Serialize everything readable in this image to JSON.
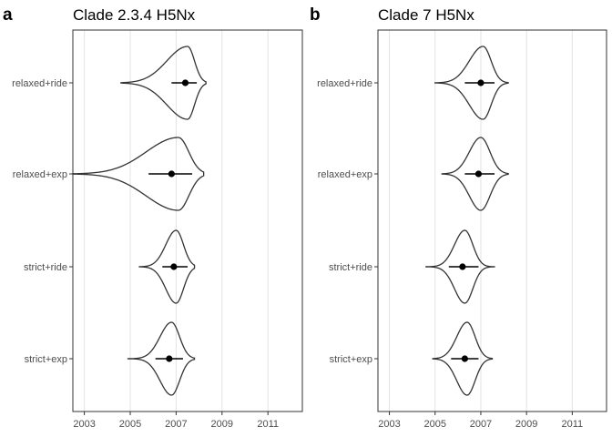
{
  "chart_data": [
    {
      "type": "violin",
      "panel_label": "a",
      "title": "Clade 2.3.4 H5Nx",
      "xlim": [
        2002.5,
        2012.5
      ],
      "x_ticks": [
        "2003",
        "2005",
        "2007",
        "2009",
        "2011"
      ],
      "x_tick_values": [
        2003,
        2005,
        2007,
        2009,
        2011
      ],
      "grid": true,
      "categories": [
        {
          "label": "relaxed+ride",
          "mode": 2007.5,
          "sd_left": 0.9,
          "sd_right": 0.3,
          "min": 2004.6,
          "max": 2008.3,
          "median": 2007.4,
          "ci": [
            2006.8,
            2007.9
          ]
        },
        {
          "label": "relaxed+exp",
          "mode": 2007.1,
          "sd_left": 1.4,
          "sd_right": 0.45,
          "min": 2002.5,
          "max": 2008.2,
          "median": 2006.8,
          "ci": [
            2005.8,
            2007.7
          ]
        },
        {
          "label": "strict+ride",
          "mode": 2007.0,
          "sd_left": 0.45,
          "sd_right": 0.32,
          "min": 2005.4,
          "max": 2007.8,
          "median": 2006.9,
          "ci": [
            2006.4,
            2007.5
          ]
        },
        {
          "label": "strict+exp",
          "mode": 2006.8,
          "sd_left": 0.5,
          "sd_right": 0.35,
          "min": 2004.9,
          "max": 2007.8,
          "median": 2006.7,
          "ci": [
            2006.1,
            2007.3
          ]
        }
      ]
    },
    {
      "type": "violin",
      "panel_label": "b",
      "title": "Clade 7 H5Nx",
      "xlim": [
        2002.5,
        2012.5
      ],
      "x_ticks": [
        "2003",
        "2005",
        "2007",
        "2009",
        "2011"
      ],
      "x_tick_values": [
        2003,
        2005,
        2007,
        2009,
        2011
      ],
      "grid": true,
      "categories": [
        {
          "label": "relaxed+ride",
          "mode": 2007.1,
          "sd_left": 0.6,
          "sd_right": 0.35,
          "min": 2005.0,
          "max": 2008.2,
          "median": 2007.0,
          "ci": [
            2006.3,
            2007.6
          ]
        },
        {
          "label": "relaxed+exp",
          "mode": 2007.0,
          "sd_left": 0.5,
          "sd_right": 0.4,
          "min": 2005.3,
          "max": 2008.2,
          "median": 2006.9,
          "ci": [
            2006.3,
            2007.6
          ]
        },
        {
          "label": "strict+ride",
          "mode": 2006.3,
          "sd_left": 0.45,
          "sd_right": 0.35,
          "min": 2004.6,
          "max": 2007.6,
          "median": 2006.2,
          "ci": [
            2005.6,
            2006.9
          ]
        },
        {
          "label": "strict+exp",
          "mode": 2006.4,
          "sd_left": 0.45,
          "sd_right": 0.35,
          "min": 2004.9,
          "max": 2007.5,
          "median": 2006.3,
          "ci": [
            2005.7,
            2006.9
          ]
        }
      ]
    }
  ]
}
